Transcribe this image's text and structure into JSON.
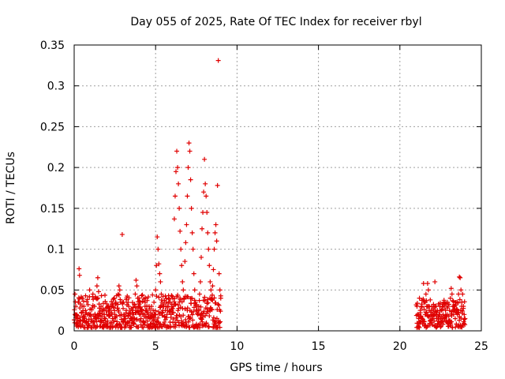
{
  "chart_data": {
    "type": "scatter",
    "title": "Day 055 of 2025, Rate Of TEC Index for receiver rbyl",
    "xlabel": "GPS time / hours",
    "ylabel": "ROTI / TECUs",
    "xlim": [
      0,
      25
    ],
    "ylim": [
      0,
      0.35
    ],
    "xticks": [
      0,
      5,
      10,
      15,
      20,
      25
    ],
    "xtick_labels": [
      "0",
      "5",
      "10",
      "15",
      "20",
      "25"
    ],
    "yticks": [
      0,
      0.05,
      0.1,
      0.15,
      0.2,
      0.25,
      0.3,
      0.35
    ],
    "ytick_labels": [
      "0",
      "0.05",
      "0.1",
      "0.15",
      "0.2",
      "0.25",
      "0.3",
      "0.35"
    ],
    "grid": true,
    "marker": "+",
    "color": "#e00000",
    "series": [
      {
        "name": "ROTI",
        "points": [
          [
            0.05,
            0.045
          ],
          [
            0.1,
            0.03
          ],
          [
            0.15,
            0.02
          ],
          [
            0.2,
            0.015
          ],
          [
            0.25,
            0.035
          ],
          [
            0.3,
            0.076
          ],
          [
            0.33,
            0.068
          ],
          [
            0.35,
            0.028
          ],
          [
            0.4,
            0.012
          ],
          [
            0.45,
            0.022
          ],
          [
            0.5,
            0.04
          ],
          [
            0.55,
            0.018
          ],
          [
            0.6,
            0.03
          ],
          [
            0.65,
            0.015
          ],
          [
            0.7,
            0.025
          ],
          [
            0.75,
            0.01
          ],
          [
            0.8,
            0.02
          ],
          [
            0.85,
            0.032
          ],
          [
            0.9,
            0.014
          ],
          [
            0.95,
            0.05
          ],
          [
            1.0,
            0.02
          ],
          [
            1.05,
            0.012
          ],
          [
            1.1,
            0.028
          ],
          [
            1.15,
            0.045
          ],
          [
            1.2,
            0.018
          ],
          [
            1.25,
            0.03
          ],
          [
            1.3,
            0.015
          ],
          [
            1.35,
            0.04
          ],
          [
            1.4,
            0.055
          ],
          [
            1.45,
            0.065
          ],
          [
            1.5,
            0.048
          ],
          [
            1.55,
            0.022
          ],
          [
            1.6,
            0.012
          ],
          [
            1.65,
            0.03
          ],
          [
            1.7,
            0.018
          ],
          [
            1.75,
            0.025
          ],
          [
            1.8,
            0.01
          ],
          [
            1.85,
            0.02
          ],
          [
            1.9,
            0.015
          ],
          [
            1.95,
            0.028
          ],
          [
            2.0,
            0.02
          ],
          [
            2.05,
            0.012
          ],
          [
            2.1,
            0.03
          ],
          [
            2.15,
            0.018
          ],
          [
            2.2,
            0.025
          ],
          [
            2.25,
            0.01
          ],
          [
            2.3,
            0.022
          ],
          [
            2.35,
            0.015
          ],
          [
            2.4,
            0.03
          ],
          [
            2.45,
            0.012
          ],
          [
            2.5,
            0.02
          ],
          [
            2.55,
            0.035
          ],
          [
            2.6,
            0.018
          ],
          [
            2.65,
            0.028
          ],
          [
            2.7,
            0.045
          ],
          [
            2.75,
            0.055
          ],
          [
            2.8,
            0.05
          ],
          [
            2.85,
            0.035
          ],
          [
            2.9,
            0.02
          ],
          [
            2.95,
            0.118
          ],
          [
            3.0,
            0.012
          ],
          [
            3.05,
            0.02
          ],
          [
            3.1,
            0.004
          ],
          [
            3.15,
            0.015
          ],
          [
            3.2,
            0.025
          ],
          [
            3.25,
            0.01
          ],
          [
            3.3,
            0.018
          ],
          [
            3.35,
            0.03
          ],
          [
            3.4,
            0.012
          ],
          [
            3.45,
            0.022
          ],
          [
            3.5,
            0.015
          ],
          [
            3.55,
            0.025
          ],
          [
            3.6,
            0.01
          ],
          [
            3.65,
            0.02
          ],
          [
            3.7,
            0.032
          ],
          [
            3.75,
            0.045
          ],
          [
            3.8,
            0.062
          ],
          [
            3.85,
            0.055
          ],
          [
            3.9,
            0.04
          ],
          [
            3.95,
            0.03
          ],
          [
            4.0,
            0.02
          ],
          [
            4.05,
            0.035
          ],
          [
            4.1,
            0.015
          ],
          [
            4.15,
            0.025
          ],
          [
            4.2,
            0.036
          ],
          [
            4.25,
            0.012
          ],
          [
            4.3,
            0.02
          ],
          [
            4.35,
            0.03
          ],
          [
            4.4,
            0.018
          ],
          [
            4.45,
            0.025
          ],
          [
            4.5,
            0.012
          ],
          [
            4.55,
            0.02
          ],
          [
            4.6,
            0.03
          ],
          [
            4.65,
            0.015
          ],
          [
            4.7,
            0.022
          ],
          [
            4.75,
            0.03
          ],
          [
            4.8,
            0.018
          ],
          [
            4.85,
            0.025
          ],
          [
            4.9,
            0.035
          ],
          [
            4.95,
            0.02
          ],
          [
            5.0,
            0.05
          ],
          [
            5.05,
            0.08
          ],
          [
            5.1,
            0.115
          ],
          [
            5.15,
            0.1
          ],
          [
            5.2,
            0.082
          ],
          [
            5.25,
            0.07
          ],
          [
            5.3,
            0.06
          ],
          [
            5.35,
            0.045
          ],
          [
            5.4,
            0.035
          ],
          [
            5.45,
            0.025
          ],
          [
            5.5,
            0.03
          ],
          [
            5.55,
            0.018
          ],
          [
            5.6,
            0.025
          ],
          [
            5.65,
            0.035
          ],
          [
            5.7,
            0.02
          ],
          [
            5.75,
            0.03
          ],
          [
            5.8,
            0.04
          ],
          [
            5.85,
            0.025
          ],
          [
            5.9,
            0.035
          ],
          [
            5.95,
            0.02
          ],
          [
            6.0,
            0.03
          ],
          [
            6.05,
            0.04
          ],
          [
            6.1,
            0.03
          ],
          [
            6.15,
            0.137
          ],
          [
            6.2,
            0.165
          ],
          [
            6.25,
            0.195
          ],
          [
            6.3,
            0.22
          ],
          [
            6.35,
            0.2
          ],
          [
            6.4,
            0.18
          ],
          [
            6.45,
            0.15
          ],
          [
            6.5,
            0.122
          ],
          [
            6.55,
            0.1
          ],
          [
            6.6,
            0.08
          ],
          [
            6.65,
            0.06
          ],
          [
            6.7,
            0.05
          ],
          [
            6.75,
            0.04
          ],
          [
            6.8,
            0.085
          ],
          [
            6.85,
            0.108
          ],
          [
            6.9,
            0.13
          ],
          [
            6.95,
            0.165
          ],
          [
            7.0,
            0.2
          ],
          [
            7.05,
            0.23
          ],
          [
            7.1,
            0.22
          ],
          [
            7.15,
            0.185
          ],
          [
            7.2,
            0.15
          ],
          [
            7.25,
            0.12
          ],
          [
            7.3,
            0.1
          ],
          [
            7.35,
            0.07
          ],
          [
            7.4,
            0.05
          ],
          [
            7.45,
            0.035
          ],
          [
            7.5,
            0.025
          ],
          [
            7.55,
            0.03
          ],
          [
            7.6,
            0.02
          ],
          [
            7.65,
            0.03
          ],
          [
            7.7,
            0.045
          ],
          [
            7.75,
            0.06
          ],
          [
            7.8,
            0.09
          ],
          [
            7.85,
            0.125
          ],
          [
            7.9,
            0.145
          ],
          [
            7.95,
            0.17
          ],
          [
            8.0,
            0.21
          ],
          [
            8.05,
            0.18
          ],
          [
            8.1,
            0.165
          ],
          [
            8.15,
            0.145
          ],
          [
            8.2,
            0.12
          ],
          [
            8.25,
            0.1
          ],
          [
            8.3,
            0.08
          ],
          [
            8.35,
            0.06
          ],
          [
            8.4,
            0.05
          ],
          [
            8.45,
            0.04
          ],
          [
            8.5,
            0.055
          ],
          [
            8.55,
            0.075
          ],
          [
            8.6,
            0.1
          ],
          [
            8.65,
            0.12
          ],
          [
            8.7,
            0.13
          ],
          [
            8.75,
            0.11
          ],
          [
            8.8,
            0.178
          ],
          [
            8.85,
            0.331
          ],
          [
            8.9,
            0.07
          ],
          [
            8.95,
            0.05
          ],
          [
            9.0,
            0.04
          ],
          [
            21.05,
            0.03
          ],
          [
            21.1,
            0.02
          ],
          [
            21.15,
            0.015
          ],
          [
            21.2,
            0.04
          ],
          [
            21.25,
            0.025
          ],
          [
            21.3,
            0.018
          ],
          [
            21.35,
            0.03
          ],
          [
            21.4,
            0.012
          ],
          [
            21.45,
            0.058
          ],
          [
            21.5,
            0.035
          ],
          [
            21.55,
            0.02
          ],
          [
            21.6,
            0.045
          ],
          [
            21.65,
            0.03
          ],
          [
            21.7,
            0.058
          ],
          [
            21.75,
            0.05
          ],
          [
            21.8,
            0.025
          ],
          [
            21.85,
            0.012
          ],
          [
            21.9,
            0.02
          ],
          [
            21.95,
            0.03
          ],
          [
            22.0,
            0.015
          ],
          [
            22.05,
            0.025
          ],
          [
            22.1,
            0.012
          ],
          [
            22.15,
            0.06
          ],
          [
            22.2,
            0.02
          ],
          [
            22.25,
            0.015
          ],
          [
            22.3,
            0.025
          ],
          [
            22.35,
            0.012
          ],
          [
            22.4,
            0.02
          ],
          [
            22.45,
            0.03
          ],
          [
            22.5,
            0.015
          ],
          [
            22.55,
            0.025
          ],
          [
            22.6,
            0.012
          ],
          [
            22.65,
            0.02
          ],
          [
            22.7,
            0.035
          ],
          [
            22.75,
            0.015
          ],
          [
            22.8,
            0.025
          ],
          [
            22.85,
            0.012
          ],
          [
            22.9,
            0.02
          ],
          [
            22.95,
            0.03
          ],
          [
            23.0,
            0.018
          ],
          [
            23.05,
            0.025
          ],
          [
            23.1,
            0.04
          ],
          [
            23.15,
            0.052
          ],
          [
            23.2,
            0.045
          ],
          [
            23.25,
            0.03
          ],
          [
            23.3,
            0.02
          ],
          [
            23.35,
            0.03
          ],
          [
            23.4,
            0.015
          ],
          [
            23.45,
            0.025
          ],
          [
            23.5,
            0.035
          ],
          [
            23.55,
            0.02
          ],
          [
            23.6,
            0.045
          ],
          [
            23.65,
            0.066
          ],
          [
            23.7,
            0.065
          ],
          [
            23.75,
            0.05
          ],
          [
            23.8,
            0.035
          ],
          [
            23.85,
            0.045
          ],
          [
            23.9,
            0.03
          ],
          [
            23.95,
            0.02
          ],
          [
            24.0,
            0.015
          ]
        ]
      }
    ],
    "noise_bands": [
      {
        "x_start": 0.0,
        "x_end": 9.0,
        "y_min": 0.0,
        "y_max": 0.04
      },
      {
        "x_start": 21.0,
        "x_end": 24.0,
        "y_min": 0.0,
        "y_max": 0.035
      }
    ]
  }
}
